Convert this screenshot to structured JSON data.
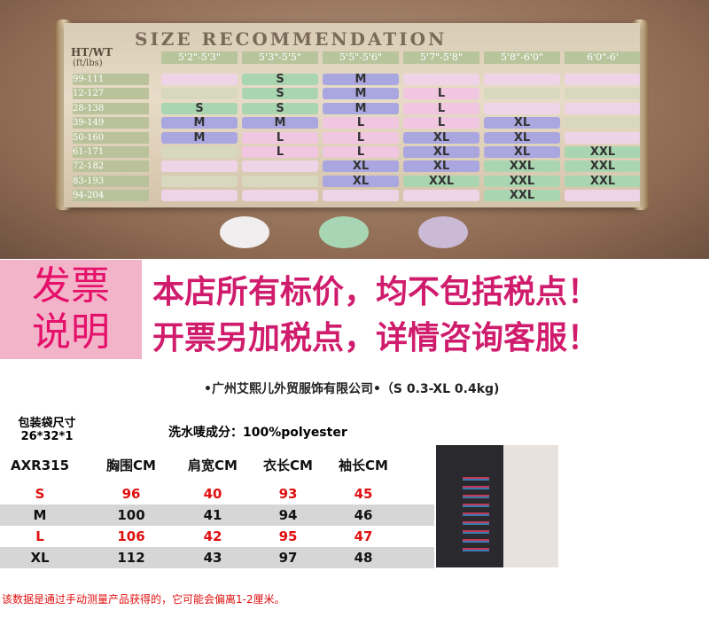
{
  "size_chart": {
    "title": "SIZE RECOMMENDATION",
    "corner_label": "HT/WT",
    "corner_unit": "(ft/lbs)",
    "heights": [
      "5'2\"-5'3\"",
      "5'3\"-5'5\"",
      "5'5\"-5'6\"",
      "5'7\"-5'8\"",
      "5'8\"-6'0\"",
      "6'0\"-6'"
    ],
    "weights": [
      "99-111",
      "12-127",
      "28-138",
      "39-149",
      "50-160",
      "61-171",
      "72-182",
      "83-193",
      "94-204"
    ],
    "rows": [
      [
        null,
        "S",
        "M",
        null,
        null,
        null
      ],
      [
        null,
        "S",
        "M",
        "L",
        null,
        null
      ],
      [
        "S",
        "S",
        "M",
        "L",
        null,
        null
      ],
      [
        "M",
        "M",
        "L",
        "L",
        "XL",
        null
      ],
      [
        "M",
        "L",
        "L",
        "XL",
        "XL",
        null
      ],
      [
        null,
        "L",
        "L",
        "XL",
        "XL",
        "XXL"
      ],
      [
        null,
        null,
        "XL",
        "XL",
        "XXL",
        "XXL"
      ],
      [
        null,
        null,
        "XL",
        "XXL",
        "XXL",
        "XXL"
      ],
      [
        null,
        null,
        null,
        null,
        "XXL",
        null
      ]
    ]
  },
  "banner": {
    "label_line1": "发票",
    "label_line2": "说明",
    "line1": "本店所有标价，均不包括税点！",
    "line2": "开票另加税点，详情咨询客服！"
  },
  "company": "•广州艾熙儿外贸服饰有限公司•（S 0.3-XL 0.4kg)",
  "package_label": "包装袋尺寸",
  "package_size": "26*32*1",
  "material": "洗水唛成分：100%polyester",
  "table": {
    "header": [
      "AXR315",
      "胸围CM",
      "肩宽CM",
      "衣长CM",
      "袖长CM"
    ],
    "rows": [
      [
        "S",
        "96",
        "40",
        "93",
        "45"
      ],
      [
        "M",
        "100",
        "41",
        "94",
        "46"
      ],
      [
        "L",
        "106",
        "42",
        "95",
        "47"
      ],
      [
        "XL",
        "112",
        "43",
        "97",
        "48"
      ]
    ]
  },
  "note": "该数据是通过手动测量产品获得的，它可能会偏离1-2厘米。"
}
